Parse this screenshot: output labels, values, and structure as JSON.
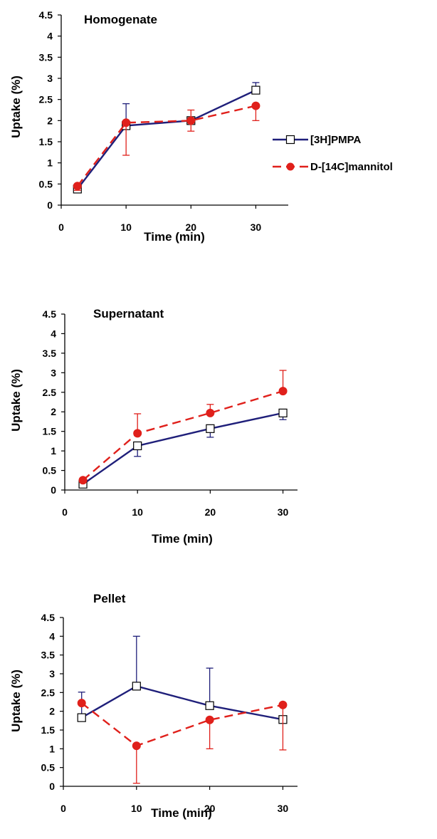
{
  "colors": {
    "pmpa": "#1f1f7a",
    "mannitol": "#e0201b",
    "axis": "#000000"
  },
  "legend": {
    "series": [
      "[3H]PMPA",
      "D-[14C]mannitol"
    ]
  },
  "chart_data": [
    {
      "type": "line",
      "title": "Homogenate",
      "xlabel": "Time (min)",
      "ylabel": "Uptake (%)",
      "xlim": [
        0,
        35
      ],
      "ylim": [
        0,
        4.5
      ],
      "x_ticks": [
        "0",
        "10",
        "20",
        "30"
      ],
      "y_ticks": [
        "0",
        "0.5",
        "1",
        "1.5",
        "2",
        "2.5",
        "3",
        "3.5",
        "4",
        "4.5"
      ],
      "x": [
        2.5,
        10,
        20,
        30
      ],
      "series": [
        {
          "name": "[3H]PMPA",
          "marker": "square-open",
          "line": "solid",
          "values": [
            0.38,
            1.88,
            2.0,
            2.72
          ],
          "error_up": [
            0.0,
            0.52,
            0.0,
            0.18
          ],
          "error_down": [
            0.0,
            0.0,
            0.0,
            0.0
          ]
        },
        {
          "name": "D-[14C]mannitol",
          "marker": "circle-filled",
          "line": "dashed",
          "values": [
            0.45,
            1.95,
            2.0,
            2.35
          ],
          "error_up": [
            0.0,
            0.0,
            0.25,
            0.0
          ],
          "error_down": [
            0.1,
            0.77,
            0.25,
            0.35
          ]
        }
      ],
      "legend_position": "right"
    },
    {
      "type": "line",
      "title": "Supernatant",
      "xlabel": "Time (min)",
      "ylabel": "Uptake (%)",
      "xlim": [
        0,
        32
      ],
      "ylim": [
        0,
        4.5
      ],
      "x_ticks": [
        "0",
        "10",
        "20",
        "30"
      ],
      "y_ticks": [
        "0",
        "0.5",
        "1",
        "1.5",
        "2",
        "2.5",
        "3",
        "3.5",
        "4",
        "4.5"
      ],
      "x": [
        2.5,
        10,
        20,
        30
      ],
      "series": [
        {
          "name": "[3H]PMPA",
          "marker": "square-open",
          "line": "solid",
          "values": [
            0.15,
            1.13,
            1.57,
            1.97
          ],
          "error_up": [
            0.0,
            0.0,
            0.0,
            0.0
          ],
          "error_down": [
            0.0,
            0.27,
            0.22,
            0.17
          ]
        },
        {
          "name": "D-[14C]mannitol",
          "marker": "circle-filled",
          "line": "dashed",
          "values": [
            0.25,
            1.45,
            1.97,
            2.53
          ],
          "error_up": [
            0.0,
            0.5,
            0.22,
            0.53
          ],
          "error_down": [
            0.0,
            0.0,
            0.0,
            0.0
          ]
        }
      ]
    },
    {
      "type": "line",
      "title": "Pellet",
      "xlabel": "Time (min)",
      "ylabel": "Uptake (%)",
      "xlim": [
        0,
        32
      ],
      "ylim": [
        0,
        4.5
      ],
      "x_ticks": [
        "0",
        "10",
        "20",
        "30"
      ],
      "y_ticks": [
        "0",
        "0.5",
        "1",
        "1.5",
        "2",
        "2.5",
        "3",
        "3.5",
        "4",
        "4.5"
      ],
      "x": [
        2.5,
        10,
        20,
        30
      ],
      "series": [
        {
          "name": "[3H]PMPA",
          "marker": "square-open",
          "line": "solid",
          "values": [
            1.83,
            2.67,
            2.15,
            1.78
          ],
          "error_up": [
            0.68,
            1.33,
            1.0,
            0.0
          ],
          "error_down": [
            0.0,
            0.0,
            0.0,
            0.0
          ]
        },
        {
          "name": "D-[14C]mannitol",
          "marker": "circle-filled",
          "line": "dashed",
          "values": [
            2.22,
            1.08,
            1.77,
            2.17
          ],
          "error_up": [
            0.0,
            0.0,
            0.0,
            0.0
          ],
          "error_down": [
            0.0,
            1.0,
            0.77,
            1.2
          ]
        }
      ]
    }
  ]
}
